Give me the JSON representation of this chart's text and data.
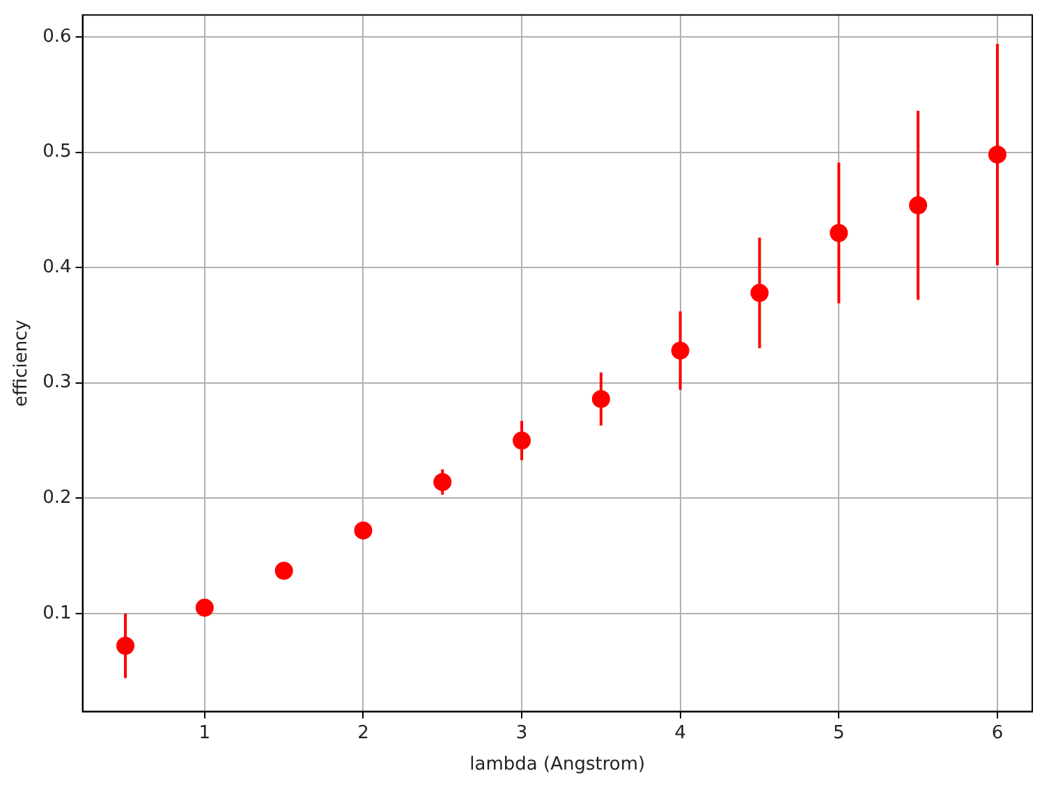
{
  "chart_data": {
    "type": "scatter",
    "xlabel": "lambda (Angstrom)",
    "ylabel": "efficiency",
    "x": [
      0.5,
      1,
      1.5,
      2,
      2.5,
      3,
      3.5,
      4,
      4.5,
      5,
      5.5,
      6
    ],
    "series": [
      {
        "color": "#ff0000",
        "values": [
          0.072,
          0.105,
          0.137,
          0.172,
          0.214,
          0.25,
          0.286,
          0.328,
          0.378,
          0.43,
          0.454,
          0.498
        ],
        "errors": [
          0.028,
          0.003,
          0.004,
          0.005,
          0.011,
          0.017,
          0.023,
          0.034,
          0.048,
          0.061,
          0.082,
          0.096
        ]
      }
    ],
    "xlim": [
      0.23,
      6.22
    ],
    "xticks": [
      1,
      2,
      3,
      4,
      5,
      6
    ],
    "ylim": [
      0.015,
      0.619
    ],
    "yticks": [
      0.1,
      0.2,
      0.3,
      0.4,
      0.5,
      0.6
    ],
    "grid": true,
    "marker": "circle",
    "legend": false
  }
}
